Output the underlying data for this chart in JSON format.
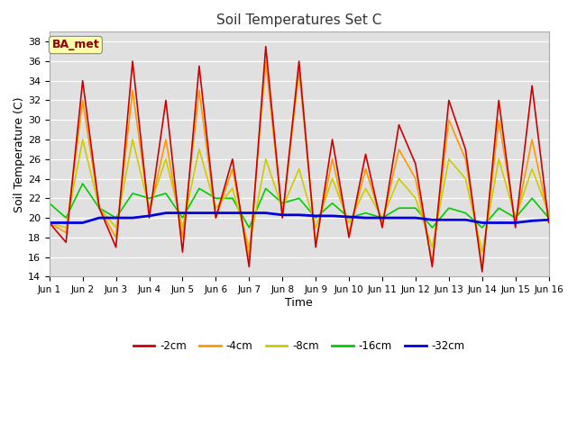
{
  "title": "Soil Temperatures Set C",
  "xlabel": "Time",
  "ylabel": "Soil Temperature (C)",
  "ylim": [
    14,
    39
  ],
  "yticks": [
    14,
    16,
    18,
    20,
    22,
    24,
    26,
    28,
    30,
    32,
    34,
    36,
    38
  ],
  "annotation": "BA_met",
  "fig_bg_color": "#ffffff",
  "plot_bg_color": "#e0e0e0",
  "series": {
    "-2cm": {
      "color": "#cc0000",
      "lw": 1.2
    },
    "-4cm": {
      "color": "#ff9900",
      "lw": 1.2
    },
    "-8cm": {
      "color": "#cccc00",
      "lw": 1.2
    },
    "-16cm": {
      "color": "#00cc00",
      "lw": 1.2
    },
    "-32cm": {
      "color": "#0000dd",
      "lw": 2.0
    }
  },
  "xtick_labels": [
    "Jun 1",
    "Jun 2",
    "Jun 3",
    "Jun 4",
    "Jun 5",
    "Jun 6",
    "Jun 7",
    "Jun 8",
    "Jun 9",
    "Jun 10",
    "Jun 11",
    "Jun 12",
    "Jun 13",
    "Jun 14",
    "Jun 15",
    "Jun 16"
  ],
  "x": [
    0,
    0.5,
    1,
    1.5,
    2,
    2.5,
    3,
    3.5,
    4,
    4.5,
    5,
    5.5,
    6,
    6.5,
    7,
    7.5,
    8,
    8.5,
    9,
    9.5,
    10,
    10.5,
    11,
    11.5,
    12,
    12.5,
    13,
    13.5,
    14,
    14.5,
    15
  ],
  "y_2cm": [
    19.5,
    17.5,
    34,
    21,
    17,
    36,
    20,
    32,
    16.5,
    35.5,
    20,
    26,
    15,
    37.5,
    20,
    36,
    17,
    28,
    18,
    26.5,
    19,
    29.5,
    25.5,
    15,
    32,
    27,
    14.5,
    32,
    19,
    33.5,
    19.5
  ],
  "y_4cm": [
    19.5,
    18.5,
    32,
    21,
    18,
    33,
    20.5,
    28,
    18,
    33,
    20,
    25,
    16,
    36,
    20,
    35,
    17.5,
    26,
    18.5,
    25,
    19.5,
    27,
    24,
    15.5,
    30,
    26,
    15,
    30,
    19.5,
    28,
    20
  ],
  "y_8cm": [
    19.5,
    19,
    28,
    21,
    19,
    28,
    21,
    26,
    19,
    27,
    21,
    23,
    17,
    26,
    21,
    25,
    19,
    24,
    19.5,
    23,
    20,
    24,
    22,
    17,
    26,
    24,
    16.5,
    26,
    20,
    25,
    20.5
  ],
  "y_16cm": [
    21.5,
    20,
    23.5,
    21,
    20,
    22.5,
    22,
    22.5,
    20,
    23,
    22,
    22,
    19,
    23,
    21.5,
    22,
    20,
    21.5,
    20,
    20.5,
    20,
    21,
    21,
    19,
    21,
    20.5,
    19,
    21,
    20,
    22,
    20
  ],
  "y_32cm": [
    19.5,
    19.5,
    19.5,
    20,
    20,
    20,
    20.2,
    20.5,
    20.5,
    20.5,
    20.5,
    20.5,
    20.5,
    20.5,
    20.3,
    20.3,
    20.2,
    20.2,
    20.1,
    20,
    20,
    20,
    20,
    19.8,
    19.8,
    19.8,
    19.5,
    19.5,
    19.5,
    19.7,
    19.8
  ]
}
